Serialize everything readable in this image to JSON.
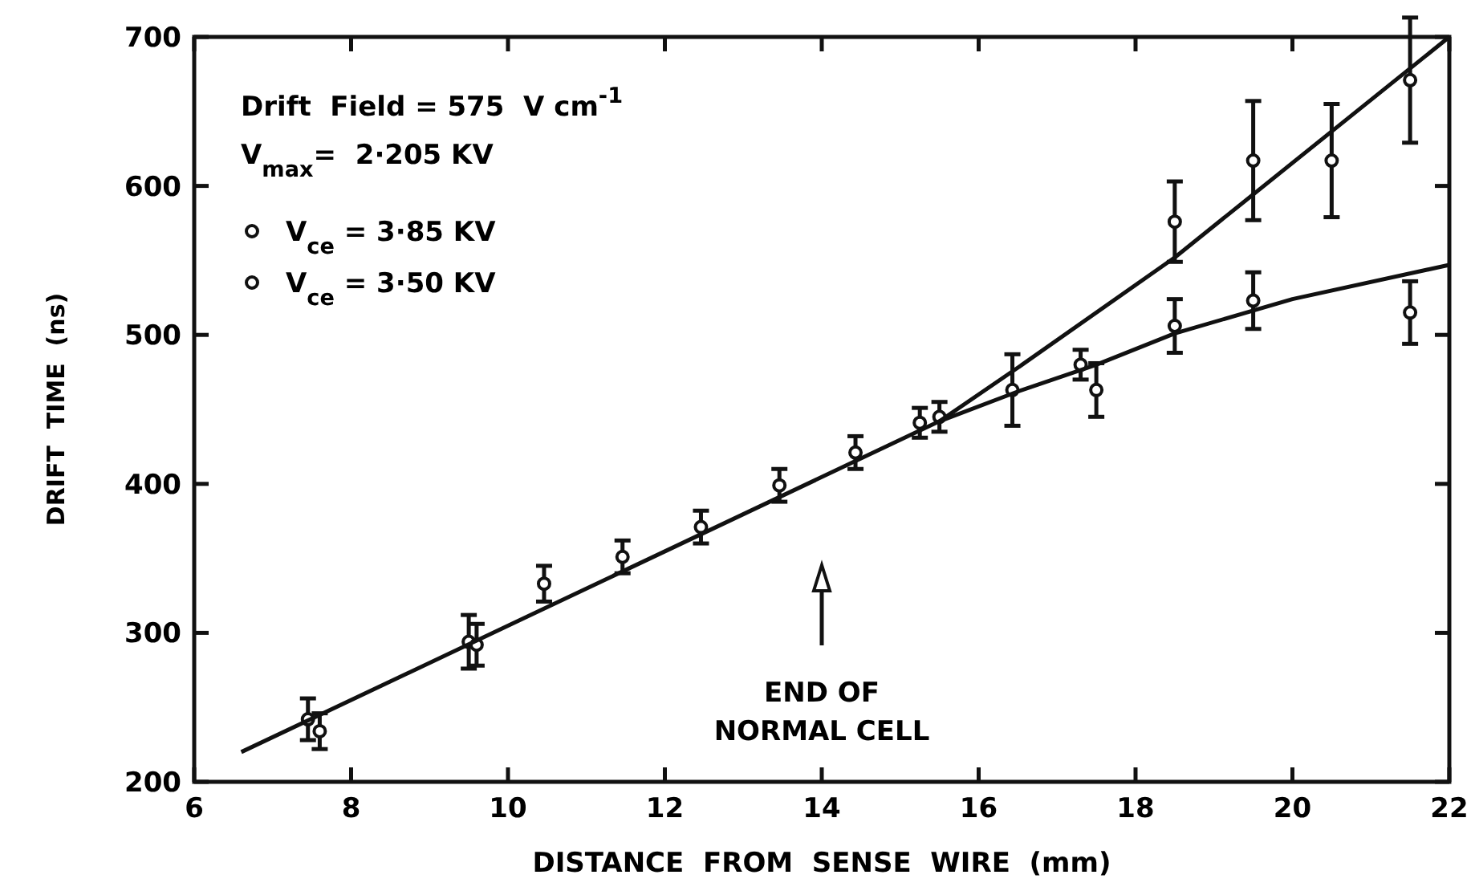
{
  "chart_data": {
    "type": "scatter",
    "xlabel": "DISTANCE  FROM  SENSE  WIRE  (mm)",
    "ylabel": "DRIFT  TIME  (ns)",
    "xlim": [
      6,
      22
    ],
    "xticks": [
      6,
      8,
      10,
      12,
      14,
      16,
      18,
      20,
      22
    ],
    "ylim": [
      200,
      700
    ],
    "yticks": [
      200,
      300,
      400,
      500,
      600,
      700
    ],
    "grid": false,
    "legend": "top left",
    "marker": "circle",
    "annotations": [
      "Drift  Field = 575  V cm$^{-1}$",
      "V$_{max}$=  2·205 KV",
      "END OF\nNORMAL CELL"
    ],
    "series": [
      {
        "name": "V$_{ce}$ = 3·85 KV",
        "color": "#111111",
        "x": [
          7.45,
          9.5,
          10.46,
          11.46,
          12.46,
          13.46,
          14.43,
          15.5,
          16.43,
          17.5,
          18.5,
          19.5,
          20.5,
          21.5
        ],
        "values": [
          242,
          294,
          333,
          351,
          371,
          399,
          421,
          445,
          463,
          463,
          576,
          617,
          617,
          671
        ],
        "errors": [
          14,
          18,
          12,
          11,
          11,
          11,
          11,
          10,
          24,
          18,
          27,
          40,
          38,
          42
        ]
      },
      {
        "name": "V$_{ce}$ = 3·50 KV",
        "color": "#111111",
        "x": [
          7.6,
          9.6,
          15.25,
          17.3,
          18.5,
          19.5,
          21.5
        ],
        "values": [
          234,
          292,
          441,
          480,
          506,
          523,
          515
        ],
        "errors": [
          12,
          14,
          10,
          10,
          18,
          19,
          21
        ]
      },
      {
        "type": "line",
        "color": "#111111",
        "marker": "none",
        "x": [
          6.6,
          15.5,
          16.5,
          18.5,
          22
        ],
        "values": [
          220,
          442,
          478,
          552,
          700
        ]
      },
      {
        "type": "line",
        "color": "#111111",
        "marker": "none",
        "x": [
          15.5,
          16.5,
          17.5,
          18.5,
          20,
          22
        ],
        "values": [
          442,
          462,
          480,
          501,
          524,
          547
        ]
      }
    ]
  }
}
